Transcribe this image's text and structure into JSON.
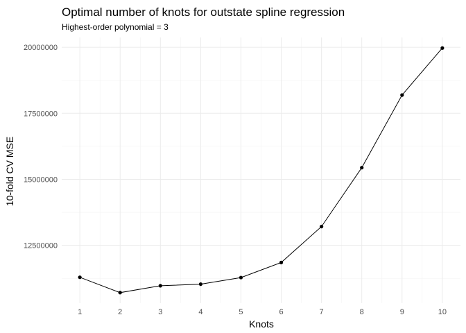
{
  "chart_data": {
    "type": "line",
    "title": "Optimal number of knots for outstate spline regression",
    "subtitle": "Highest-order polynomial = 3",
    "xlabel": "Knots",
    "ylabel": "10-fold CV MSE",
    "x": [
      1,
      2,
      3,
      4,
      5,
      6,
      7,
      8,
      9,
      10
    ],
    "series": [
      {
        "values": [
          11290000,
          10710000,
          10970000,
          11030000,
          11280000,
          11850000,
          13210000,
          15440000,
          18190000,
          19970000
        ]
      }
    ],
    "x_ticks": [
      "1",
      "2",
      "3",
      "4",
      "5",
      "6",
      "7",
      "8",
      "9",
      "10"
    ],
    "y_ticks": [
      "12500000",
      "15000000",
      "17500000",
      "20000000"
    ],
    "y_tick_values": [
      12500000,
      15000000,
      17500000,
      20000000
    ],
    "xlim": [
      0.55,
      10.45
    ],
    "ylim": [
      10310000,
      20370000
    ],
    "grid": true,
    "colors": {
      "line": "#000000",
      "point": "#000000",
      "grid": "#ebebeb",
      "tick_text": "#4d4d4d"
    }
  }
}
